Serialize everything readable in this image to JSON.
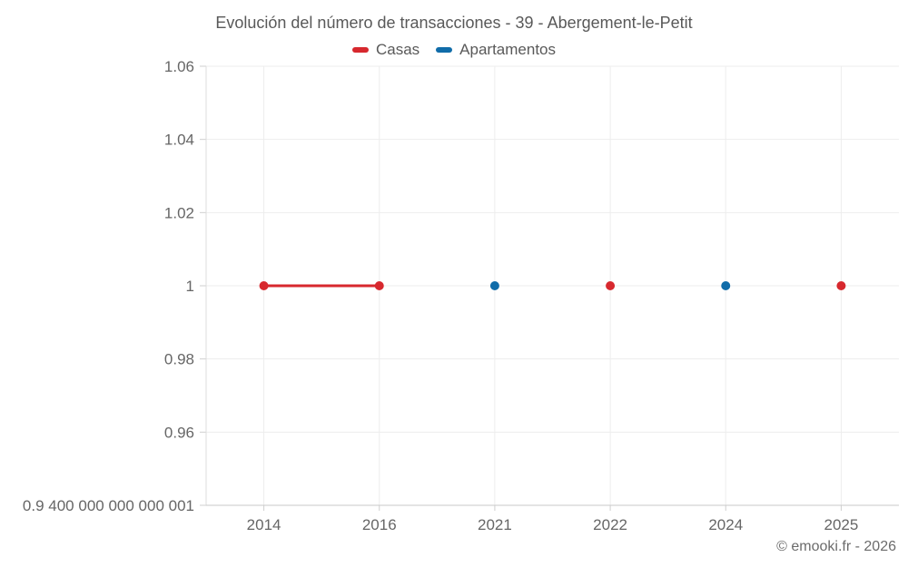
{
  "attribution": "© emooki.fr - 2026",
  "colors": {
    "casas": "#d7282e",
    "apartamentos": "#106ca9",
    "grid": "#ededed",
    "axis_y": "#dedede",
    "axis_x": "#c9c9c9",
    "tick": "#cfcfcf",
    "tick_label": "#666666",
    "title_text": "#595959",
    "attribution_text": "#6b6b6b"
  },
  "chart_data": {
    "type": "line",
    "title": "Evolución del número de transacciones - 39 - Abergement-le-Petit",
    "categories": [
      "2014",
      "2016",
      "2021",
      "2022",
      "2024",
      "2025"
    ],
    "series": [
      {
        "name": "Casas",
        "color": "#d7282e",
        "values": [
          1,
          1,
          null,
          1,
          null,
          1
        ]
      },
      {
        "name": "Apartamentos",
        "color": "#106ca9",
        "values": [
          null,
          null,
          1,
          null,
          1,
          null
        ]
      }
    ],
    "y_ticks": [
      {
        "value": 1.06,
        "label": "1.06"
      },
      {
        "value": 1.04,
        "label": "1.04"
      },
      {
        "value": 1.02,
        "label": "1.02"
      },
      {
        "value": 1.0,
        "label": "1"
      },
      {
        "value": 0.98,
        "label": "0.98"
      },
      {
        "value": 0.96,
        "label": "0.96"
      },
      {
        "value": 0.94,
        "label": "0.9 400 000 000 000 001"
      }
    ],
    "ylim": [
      0.94,
      1.06
    ],
    "grid": true,
    "legend_position": "top",
    "marker_radius": 5,
    "line_width": 3
  }
}
